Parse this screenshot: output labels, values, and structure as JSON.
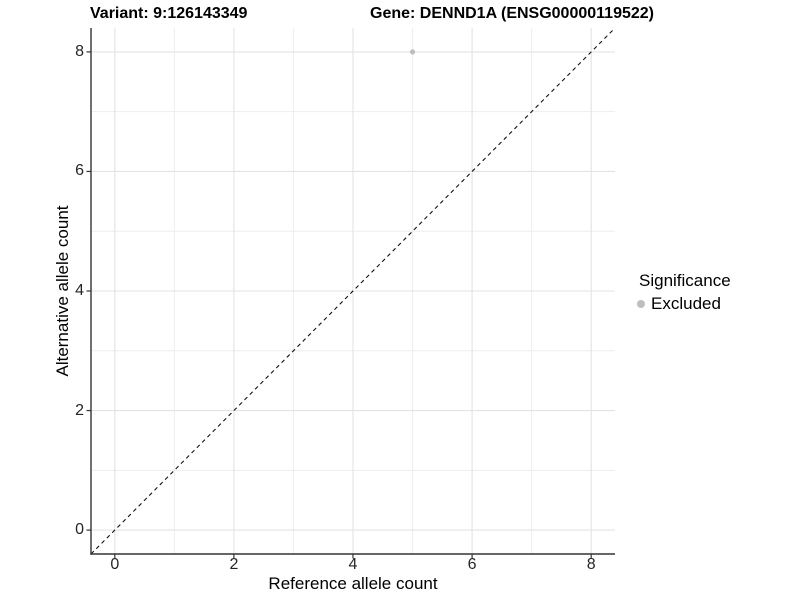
{
  "header": {
    "variant_title": "Variant: 9:126143349",
    "gene_title": "Gene: DENND1A (ENSG00000119522)"
  },
  "chart_data": {
    "type": "scatter",
    "titles": [
      "Variant: 9:126143349",
      "Gene: DENND1A (ENSG00000119522)"
    ],
    "xlabel": "Reference allele count",
    "ylabel": "Alternative allele count",
    "xlim": [
      -0.4,
      8.4
    ],
    "ylim": [
      -0.4,
      8.4
    ],
    "x_ticks": [
      0,
      2,
      4,
      6,
      8
    ],
    "y_ticks": [
      0,
      2,
      4,
      6,
      8
    ],
    "x_minor_ticks": [
      1,
      3,
      5,
      7
    ],
    "y_minor_ticks": [
      1,
      3,
      5,
      7
    ],
    "grid": "major and minor gridlines, light gray on white",
    "series": [
      {
        "name": "Excluded",
        "color": "#bebebe",
        "points": [
          {
            "x": 5,
            "y": 8
          }
        ]
      }
    ],
    "reference_line": {
      "kind": "identity y=x",
      "slope": 1,
      "intercept": 0,
      "style": "dashed",
      "color": "#111111"
    },
    "legend": {
      "title": "Significance",
      "position": "right",
      "entries": [
        {
          "label": "Excluded",
          "color": "#bebebe",
          "marker": "circle"
        }
      ]
    },
    "colors": {
      "background": "#ffffff",
      "grid_major": "#e3e3e3",
      "grid_minor": "#ededed",
      "axis_line": "#333333",
      "tick_label": "#262626",
      "point": "#bebebe"
    }
  }
}
